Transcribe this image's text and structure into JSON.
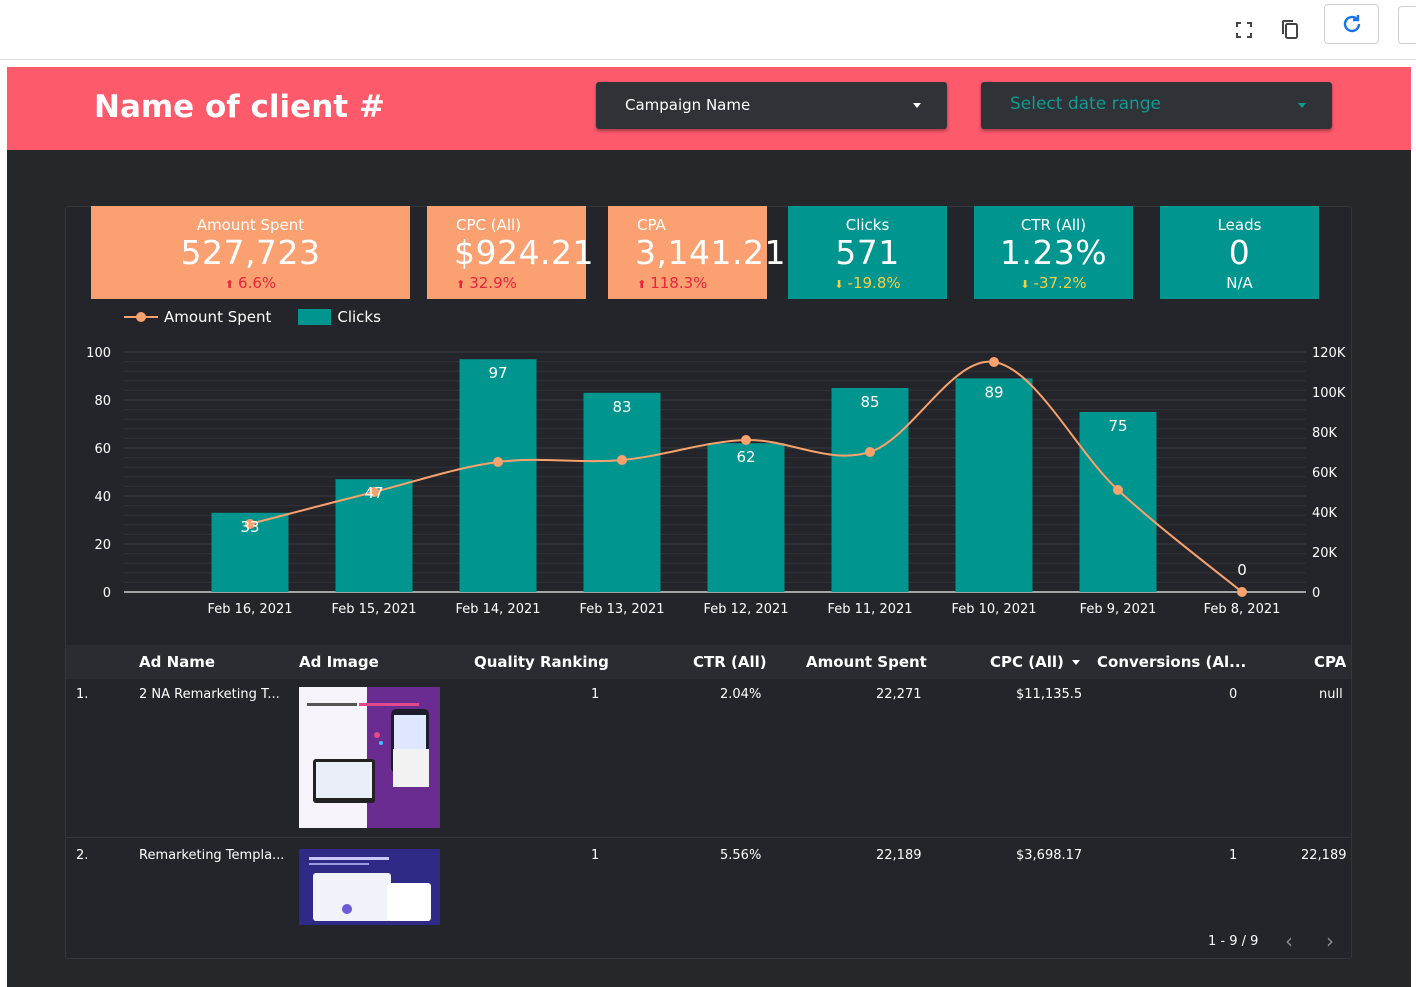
{
  "toolbar": {
    "icons": [
      "fullscreen-icon",
      "copy-icon",
      "refresh-icon"
    ]
  },
  "header": {
    "title": "Name of client #",
    "campaign_filter": "Campaign Name",
    "date_filter": "Select date range"
  },
  "colors": {
    "header": "#fd5a6c",
    "background": "#26272b",
    "orange_card": "#fba070",
    "teal_card": "#00958f",
    "line": "#f9a26d",
    "negative_delta": "#e8233c",
    "warning_delta": "#f6cf45"
  },
  "kpis": [
    {
      "label": "Amount Spent",
      "value": "527,723",
      "delta": "6.6%"
    },
    {
      "label": "CPC (All)",
      "value": "$924.21",
      "delta": "32.9%"
    },
    {
      "label": "CPA",
      "value": "3,141.21",
      "delta": "118.3%"
    },
    {
      "label": "Clicks",
      "value": "571",
      "delta": "-19.8%"
    },
    {
      "label": "CTR (All)",
      "value": "1.23%",
      "delta": "-37.2%"
    },
    {
      "label": "Leads",
      "value": "0",
      "delta": "N/A"
    }
  ],
  "chart_data": {
    "type": "bar",
    "categories": [
      "Feb 16, 2021",
      "Feb 15, 2021",
      "Feb 14, 2021",
      "Feb 13, 2021",
      "Feb 12, 2021",
      "Feb 11, 2021",
      "Feb 10, 2021",
      "Feb 9, 2021",
      "Feb 8, 2021"
    ],
    "series": [
      {
        "name": "Clicks",
        "type": "bar",
        "axis": "left",
        "values": [
          33,
          47,
          97,
          83,
          62,
          85,
          89,
          75,
          0
        ]
      },
      {
        "name": "Amount Spent",
        "type": "line",
        "axis": "right",
        "values": [
          34000,
          50000,
          65000,
          66000,
          76000,
          70000,
          115000,
          51000,
          0
        ]
      }
    ],
    "left_axis": {
      "ticks": [
        "0",
        "20",
        "40",
        "60",
        "80",
        "100"
      ],
      "ylim": [
        0,
        100
      ]
    },
    "right_axis": {
      "ticks": [
        "0",
        "20K",
        "40K",
        "60K",
        "80K",
        "100K",
        "120K"
      ],
      "ylim": [
        0,
        120000
      ]
    },
    "legend_position": "top-left",
    "grid": true
  },
  "table": {
    "columns": [
      "Ad Name",
      "Ad Image",
      "Quality Ranking",
      "CTR (All)",
      "Amount Spent",
      "CPC (All)",
      "Conversions (Al...",
      "CPA"
    ],
    "rows": [
      {
        "index": "1.",
        "ad_name": "2 NA Remarketing T...",
        "quality": "1",
        "ctr": "2.04%",
        "amount": "22,271",
        "cpc": "$11,135.5",
        "conversions": "0",
        "cpa": "null"
      },
      {
        "index": "2.",
        "ad_name": "Remarketing Templa...",
        "quality": "1",
        "ctr": "5.56%",
        "amount": "22,189",
        "cpc": "$3,698.17",
        "conversions": "1",
        "cpa": "22,189"
      }
    ],
    "pagination": "1 - 9 / 9"
  }
}
